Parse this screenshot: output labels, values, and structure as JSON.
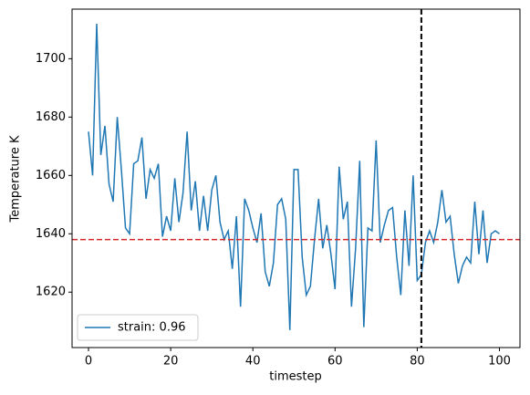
{
  "chart_data": {
    "type": "line",
    "x_label": "timestep",
    "y_label": "Temperature K",
    "x": [
      0,
      1,
      2,
      3,
      4,
      5,
      6,
      7,
      8,
      9,
      10,
      11,
      12,
      13,
      14,
      15,
      16,
      17,
      18,
      19,
      20,
      21,
      22,
      23,
      24,
      25,
      26,
      27,
      28,
      29,
      30,
      31,
      32,
      33,
      34,
      35,
      36,
      37,
      38,
      39,
      40,
      41,
      42,
      43,
      44,
      45,
      46,
      47,
      48,
      49,
      50,
      51,
      52,
      53,
      54,
      55,
      56,
      57,
      58,
      59,
      60,
      61,
      62,
      63,
      64,
      65,
      66,
      67,
      68,
      69,
      70,
      71,
      72,
      73,
      74,
      75,
      76,
      77,
      78,
      79,
      80,
      81,
      82,
      83,
      84,
      85,
      86,
      87,
      88,
      89,
      90,
      91,
      92,
      93,
      94,
      95,
      96,
      97,
      98,
      99,
      100
    ],
    "series": [
      {
        "name": "strain: 0.96",
        "color": "#1f77b4",
        "values": [
          1675,
          1660,
          1712,
          1667,
          1677,
          1657,
          1651,
          1680,
          1662,
          1642,
          1640,
          1664,
          1665,
          1673,
          1652,
          1662,
          1659,
          1664,
          1639,
          1646,
          1641,
          1659,
          1644,
          1654,
          1675,
          1648,
          1658,
          1641,
          1653,
          1641,
          1655,
          1660,
          1644,
          1638,
          1641,
          1628,
          1646,
          1615,
          1652,
          1648,
          1642,
          1637,
          1647,
          1627,
          1622,
          1630,
          1650,
          1652,
          1645,
          1607,
          1662,
          1662,
          1632,
          1619,
          1622,
          1638,
          1652,
          1635,
          1643,
          1633,
          1621,
          1663,
          1645,
          1651,
          1615,
          1635,
          1665,
          1608,
          1642,
          1641,
          1672,
          1637,
          1643,
          1648,
          1649,
          1632,
          1619,
          1648,
          1629,
          1660,
          1624,
          1626,
          1637,
          1641,
          1637,
          1644,
          1655,
          1644,
          1646,
          1633,
          1623,
          1629,
          1632,
          1630,
          1651,
          1633,
          1648,
          1630,
          1640,
          1641,
          1640
        ]
      }
    ],
    "hline": {
      "value": 1638,
      "color": "#d62728"
    },
    "vline": {
      "value": 81,
      "color": "#000000"
    },
    "xlim": [
      -4,
      105
    ],
    "ylim": [
      1601,
      1717
    ],
    "xticks": [
      0,
      20,
      40,
      60,
      80,
      100
    ],
    "yticks": [
      1620,
      1640,
      1660,
      1680,
      1700
    ],
    "legend": "lower left"
  }
}
